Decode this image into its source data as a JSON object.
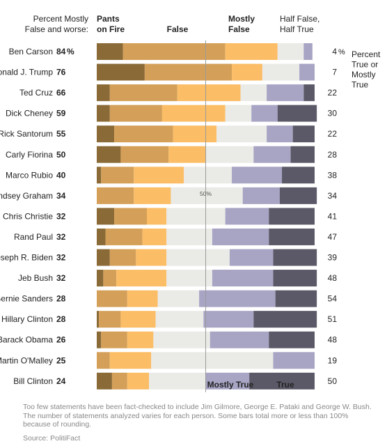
{
  "chart_data": {
    "type": "bar",
    "stacked": true,
    "orientation": "horizontal",
    "headers": {
      "left": "Percent Mostly\nFalse and worse:",
      "pants_on_fire": "Pants\non Fire",
      "false": "False",
      "mostly_false": "Mostly\nFalse",
      "half": "Half False,\nHalf True",
      "right": "Percent\nTrue or\nMostly\nTrue"
    },
    "bottom_labels": {
      "mostly_true": "Mostly True",
      "true": "True"
    },
    "midline_label": "50%",
    "percent_sign": "%",
    "segment_order": [
      "Pants on Fire",
      "False",
      "Mostly False",
      "Half True",
      "Mostly True",
      "True"
    ],
    "colors": {
      "Pants on Fire": "#8a6a37",
      "False": "#d4a059",
      "Mostly False": "#fbbd66",
      "Half True": "#eaeae6",
      "Mostly True": "#a7a4c4",
      "True": "#5b5967",
      "midline": "#9a9a9a"
    },
    "xlim": [
      0,
      100
    ],
    "rows": [
      {
        "name": "Ben Carson",
        "false_and_worse": "84",
        "true_or_mostly_true": "4",
        "values": [
          12,
          47,
          24,
          12,
          4,
          0
        ]
      },
      {
        "name": "Donald J. Trump",
        "false_and_worse": "76",
        "true_or_mostly_true": "7",
        "values": [
          22,
          40,
          14,
          17,
          7,
          0
        ]
      },
      {
        "name": "Ted Cruz",
        "false_and_worse": "66",
        "true_or_mostly_true": "22",
        "values": [
          6,
          31,
          29,
          12,
          17,
          5
        ]
      },
      {
        "name": "Dick Cheney",
        "false_and_worse": "59",
        "true_or_mostly_true": "30",
        "values": [
          6,
          24,
          29,
          12,
          12,
          18
        ]
      },
      {
        "name": "Rick Santorum",
        "false_and_worse": "55",
        "true_or_mostly_true": "22",
        "values": [
          8,
          27,
          20,
          23,
          12,
          10
        ]
      },
      {
        "name": "Carly Fiorina",
        "false_and_worse": "50",
        "true_or_mostly_true": "28",
        "values": [
          11,
          22,
          17,
          22,
          17,
          11
        ]
      },
      {
        "name": "Marco Rubio",
        "false_and_worse": "40",
        "true_or_mostly_true": "38",
        "values": [
          2,
          15,
          23,
          22,
          23,
          15
        ]
      },
      {
        "name": "Lindsey Graham",
        "false_and_worse": "34",
        "true_or_mostly_true": "34",
        "values": [
          0,
          17,
          17,
          33,
          17,
          17
        ]
      },
      {
        "name": "Chris Christie",
        "false_and_worse": "32",
        "true_or_mostly_true": "41",
        "values": [
          8,
          15,
          9,
          27,
          20,
          21
        ]
      },
      {
        "name": "Rand Paul",
        "false_and_worse": "32",
        "true_or_mostly_true": "47",
        "values": [
          4,
          17,
          11,
          21,
          26,
          21
        ]
      },
      {
        "name": "Joseph R. Biden",
        "false_and_worse": "32",
        "true_or_mostly_true": "39",
        "values": [
          6,
          12,
          14,
          29,
          20,
          20
        ]
      },
      {
        "name": "Jeb Bush",
        "false_and_worse": "32",
        "true_or_mostly_true": "48",
        "values": [
          3,
          6,
          23,
          21,
          28,
          20
        ]
      },
      {
        "name": "Bernie Sanders",
        "false_and_worse": "28",
        "true_or_mostly_true": "54",
        "values": [
          0,
          14,
          14,
          19,
          35,
          19
        ]
      },
      {
        "name": "Hillary Clinton",
        "false_and_worse": "28",
        "true_or_mostly_true": "51",
        "values": [
          1,
          10,
          16,
          22,
          23,
          29
        ]
      },
      {
        "name": "Barack Obama",
        "false_and_worse": "26",
        "true_or_mostly_true": "48",
        "values": [
          2,
          12,
          12,
          26,
          27,
          21
        ]
      },
      {
        "name": "Martin O'Malley",
        "false_and_worse": "25",
        "true_or_mostly_true": "19",
        "values": [
          0,
          6,
          19,
          56,
          19,
          0
        ]
      },
      {
        "name": "Bill Clinton",
        "false_and_worse": "24",
        "true_or_mostly_true": "50",
        "values": [
          7,
          7,
          10,
          26,
          20,
          30
        ]
      }
    ]
  },
  "footnote": "Too few statements have been fact-checked to include Jim Gilmore, George E. Pataki and George W. Bush. The number of statements analyzed varies for each person. Some bars total more or less than 100% because of rounding.",
  "source": "Source: PolitiFact"
}
